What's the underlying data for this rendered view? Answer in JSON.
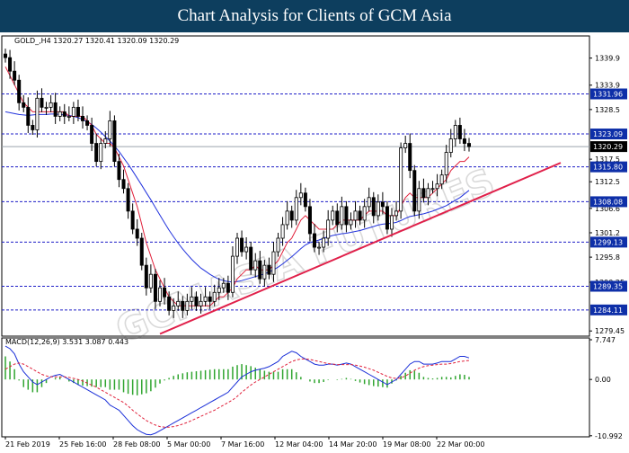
{
  "banner": {
    "title": "Chart Analysis for Clients of GCM Asia"
  },
  "watermark": {
    "text": "GCMASIA FUTURES"
  },
  "chart_data": [
    {
      "type": "candlestick",
      "header": "GOLD_,H4  1320.27 1320.41 1320.09 1320.29",
      "symbol": "GOLD_,H4",
      "ohlc_header": [
        1320.27,
        1320.41,
        1320.09,
        1320.29
      ],
      "ylim": [
        1278.3,
        1344.8
      ],
      "y_ticks": [
        1339.9,
        1333.9,
        1328.5,
        1317.5,
        1312.5,
        1306.6,
        1301.2,
        1295.8,
        1290.25,
        1279.45
      ],
      "support_resistance": [
        1331.96,
        1323.09,
        1315.8,
        1308.08,
        1299.13,
        1289.35,
        1284.11
      ],
      "current_price": 1320.29,
      "x_labels": [
        "21 Feb 2019",
        "25 Feb 16:00",
        "28 Feb 08:00",
        "5 Mar 00:00",
        "7 Mar 16:00",
        "12 Mar 04:00",
        "14 Mar 20:00",
        "19 Mar 08:00",
        "22 Mar 00:00"
      ],
      "candles_close": [
        1340,
        1337,
        1335,
        1330,
        1329,
        1325,
        1324,
        1331,
        1329,
        1329,
        1330,
        1327,
        1328,
        1327,
        1327,
        1329,
        1327,
        1326,
        1325,
        1321,
        1317,
        1321,
        1322,
        1326,
        1317,
        1313,
        1311,
        1306,
        1302,
        1300,
        1294,
        1289,
        1292,
        1286,
        1289,
        1287,
        1284,
        1285,
        1286,
        1284,
        1286,
        1287,
        1285,
        1286,
        1287,
        1286,
        1288,
        1289,
        1290,
        1288,
        1296,
        1300,
        1297,
        1298,
        1293,
        1295,
        1291,
        1294,
        1292,
        1297,
        1300,
        1303,
        1306,
        1304,
        1309,
        1310,
        1307,
        1301,
        1298,
        1298,
        1300,
        1304,
        1306,
        1303,
        1307,
        1303,
        1304,
        1306,
        1304,
        1307,
        1309,
        1305,
        1308,
        1307,
        1302,
        1305,
        1306,
        1320,
        1321,
        1315,
        1306,
        1311,
        1309,
        1311,
        1311,
        1312,
        1314,
        1319,
        1322,
        1325,
        1322,
        1321,
        1320.29
      ],
      "ma_fast": [
        1338,
        1336,
        1334,
        1332,
        1330,
        1329,
        1328,
        1328,
        1328,
        1328,
        1328,
        1328,
        1328,
        1328,
        1327,
        1327,
        1327,
        1327,
        1326,
        1325,
        1323,
        1322,
        1321,
        1321,
        1320,
        1318,
        1316,
        1313,
        1310,
        1307,
        1303,
        1299,
        1296,
        1293,
        1291,
        1289,
        1287,
        1286,
        1285,
        1285,
        1285,
        1285,
        1285,
        1285,
        1285,
        1285,
        1286,
        1287,
        1287,
        1288,
        1289,
        1291,
        1292,
        1293,
        1293,
        1294,
        1293,
        1293,
        1293,
        1294,
        1295,
        1297,
        1299,
        1300,
        1302,
        1304,
        1305,
        1304,
        1303,
        1302,
        1302,
        1302,
        1302,
        1303,
        1304,
        1304,
        1304,
        1304,
        1304,
        1305,
        1306,
        1306,
        1306,
        1306,
        1305,
        1305,
        1305,
        1307,
        1309,
        1310,
        1309,
        1309,
        1309,
        1309,
        1310,
        1311,
        1312,
        1313,
        1315,
        1316,
        1317,
        1317,
        1318
      ],
      "ma_slow": [
        1328,
        1327.8,
        1327.6,
        1327.4,
        1327.3,
        1327.2,
        1327.3,
        1327.4,
        1327.4,
        1327.4,
        1327.5,
        1327.5,
        1327.4,
        1327.3,
        1327.2,
        1327,
        1326.7,
        1326.3,
        1325.8,
        1325.2,
        1324.4,
        1323.5,
        1322.5,
        1321.5,
        1320.4,
        1319.2,
        1317.8,
        1316.4,
        1314.9,
        1313.3,
        1311.7,
        1310.1,
        1308.5,
        1306.8,
        1305.1,
        1303.4,
        1301.8,
        1300.3,
        1298.9,
        1297.6,
        1296.4,
        1295.3,
        1294.3,
        1293.4,
        1292.7,
        1292,
        1291.4,
        1290.9,
        1290.6,
        1290.4,
        1290.3,
        1290.4,
        1290.6,
        1290.9,
        1291.2,
        1291.5,
        1291.8,
        1292.1,
        1292.5,
        1293,
        1293.6,
        1294.3,
        1295.1,
        1295.9,
        1296.8,
        1297.7,
        1298.5,
        1299,
        1299.3,
        1299.6,
        1300,
        1300.3,
        1300.6,
        1300.8,
        1301,
        1301.1,
        1301.3,
        1301.5,
        1301.7,
        1302,
        1302.3,
        1302.6,
        1302.9,
        1303.1,
        1303.2,
        1303.3,
        1303.5,
        1303.9,
        1304.4,
        1304.8,
        1305,
        1305.2,
        1305.4,
        1305.7,
        1306,
        1306.4,
        1306.8,
        1307.2,
        1307.8,
        1308.4,
        1309,
        1309.8,
        1310.6
      ],
      "trendline": {
        "from": 1278.8,
        "to": 1316.7
      }
    },
    {
      "type": "macd",
      "header": "MACD(12,26,9) 3.531 3.087 0.443",
      "label": "MACD(12,26,9)",
      "values": [
        3.531,
        3.087,
        0.443
      ],
      "ylim": [
        -11.2,
        8.1
      ],
      "y_ticks": [
        7.747,
        0.0,
        -10.992
      ],
      "macd_line": [
        6.5,
        6,
        5,
        3,
        1.5,
        0.5,
        -0.5,
        -1,
        -0.5,
        0,
        0.5,
        0.8,
        1,
        0.5,
        0,
        -0.5,
        -1,
        -1.5,
        -2,
        -2.5,
        -3,
        -3.5,
        -4,
        -5,
        -5.5,
        -6,
        -7,
        -8,
        -9,
        -9.8,
        -10.3,
        -10.7,
        -10.8,
        -10.5,
        -10,
        -9.5,
        -9,
        -8.5,
        -8,
        -7.5,
        -7,
        -6.5,
        -6,
        -5.5,
        -5,
        -4.5,
        -4,
        -3.5,
        -3,
        -2.5,
        -1.5,
        -0.5,
        0.5,
        1,
        1.5,
        1.8,
        2,
        2.2,
        2.5,
        3,
        3.5,
        4.5,
        5,
        5.5,
        5.2,
        4.5,
        4,
        3.5,
        3,
        2.8,
        2.8,
        3,
        3,
        2.8,
        3,
        3.2,
        3,
        2.5,
        2,
        1.5,
        1,
        0.5,
        0,
        -0.5,
        -1,
        -0.5,
        0,
        1,
        2,
        3,
        3.5,
        3.5,
        3,
        3,
        3,
        3.2,
        3.5,
        3.5,
        3.5,
        4,
        4.5,
        4.5,
        4.2
      ],
      "signal_line": [
        2,
        2.5,
        3,
        3.2,
        3,
        2.5,
        2,
        1.5,
        1,
        0.7,
        0.5,
        0.5,
        0.5,
        0.5,
        0.4,
        0.2,
        0,
        -0.3,
        -0.7,
        -1.1,
        -1.5,
        -2,
        -2.5,
        -3,
        -3.5,
        -4,
        -4.5,
        -5.2,
        -6,
        -6.7,
        -7.4,
        -8,
        -8.5,
        -8.9,
        -9.2,
        -9.3,
        -9.3,
        -9.2,
        -9,
        -8.7,
        -8.4,
        -8,
        -7.6,
        -7.2,
        -6.8,
        -6.4,
        -6,
        -5.5,
        -5,
        -4.5,
        -4,
        -3.3,
        -2.5,
        -1.8,
        -1.1,
        -0.5,
        0,
        0.5,
        1,
        1.5,
        2,
        2.5,
        3,
        3.5,
        3.8,
        4,
        4,
        3.9,
        3.7,
        3.5,
        3.3,
        3.1,
        3,
        2.9,
        2.9,
        2.9,
        2.9,
        2.8,
        2.6,
        2.4,
        2.1,
        1.8,
        1.4,
        1,
        0.6,
        0.3,
        0.2,
        0.3,
        0.7,
        1.2,
        1.8,
        2.2,
        2.5,
        2.7,
        2.8,
        2.9,
        3,
        3,
        3.1,
        3.3,
        3.5,
        3.6,
        3.7
      ]
    }
  ]
}
